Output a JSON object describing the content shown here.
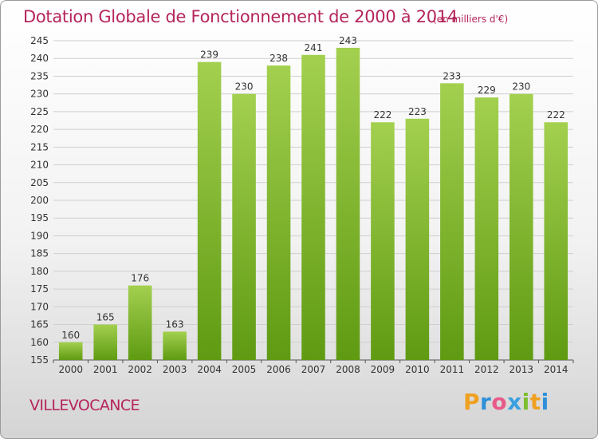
{
  "chart_data": {
    "type": "bar",
    "title": "Dotation Globale de Fonctionnement de 2000 à 2014",
    "subtitle": "(en milliers d'€)",
    "categories": [
      "2000",
      "2001",
      "2002",
      "2003",
      "2004",
      "2005",
      "2006",
      "2007",
      "2008",
      "2009",
      "2010",
      "2011",
      "2012",
      "2013",
      "2014"
    ],
    "values": [
      160,
      165,
      176,
      163,
      239,
      230,
      238,
      241,
      243,
      222,
      223,
      233,
      229,
      230,
      222
    ],
    "ylim": [
      155,
      245
    ],
    "yticks": [
      155,
      160,
      165,
      170,
      175,
      180,
      185,
      190,
      195,
      200,
      205,
      210,
      215,
      220,
      225,
      230,
      235,
      240,
      245
    ],
    "grid": true,
    "bar_color_top": "#a3d04f",
    "bar_color_bottom": "#5f9a12"
  },
  "commune": "VILLEVOCANCE",
  "logo": {
    "letters": [
      "P",
      "r",
      "o",
      "x",
      "i",
      "t",
      "i"
    ],
    "colors": [
      "#f0a020",
      "#2f8fd8",
      "#e85a8a",
      "#3aa0e0",
      "#7cbf2f",
      "#f0a020",
      "#2f8fd8"
    ]
  }
}
